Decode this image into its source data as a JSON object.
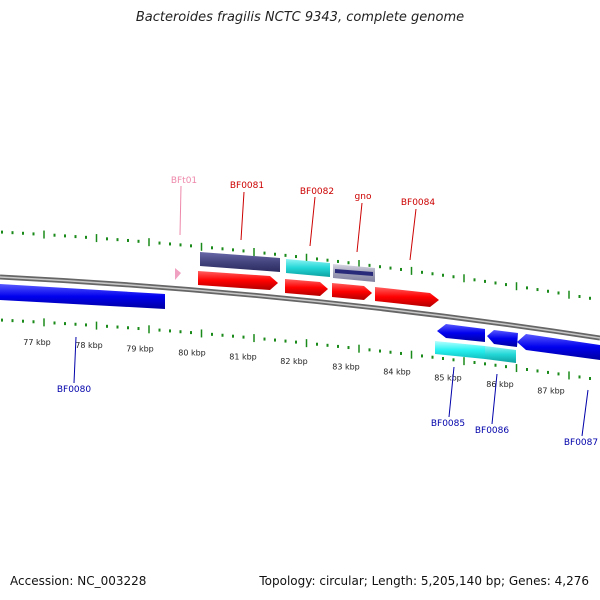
{
  "title": "Bacteroides fragilis NCTC 9343, complete genome",
  "footer": {
    "accession": "Accession: NC_003228",
    "summary": "Topology: circular; Length: 5,205,140 bp; Genes: 4,276"
  },
  "kbp_labels": [
    "77 kbp",
    "78 kbp",
    "79 kbp",
    "80 kbp",
    "81 kbp",
    "82 kbp",
    "83 kbp",
    "84 kbp",
    "85 kbp",
    "86 kbp",
    "87 kbp"
  ],
  "gene_labels": {
    "bft01": "BFt01",
    "bf0081": "BF0081",
    "bf0082": "BF0082",
    "gno": "gno",
    "bf0084": "BF0084",
    "bf0080": "BF0080",
    "bf0085": "BF0085",
    "bf0086": "BF0086",
    "bf0087": "BF0087"
  },
  "colors": {
    "forward_label": "#cc0000",
    "reverse_label": "#0000aa",
    "trna_label": "#ee88aa",
    "tick": "#1a8a1a",
    "backbone": "#777777",
    "cds_forward": "#ff1010",
    "cds_reverse": "#1010ee",
    "cog_dark": "#4a4a8a",
    "cog_cyan": "#20d8d8"
  }
}
